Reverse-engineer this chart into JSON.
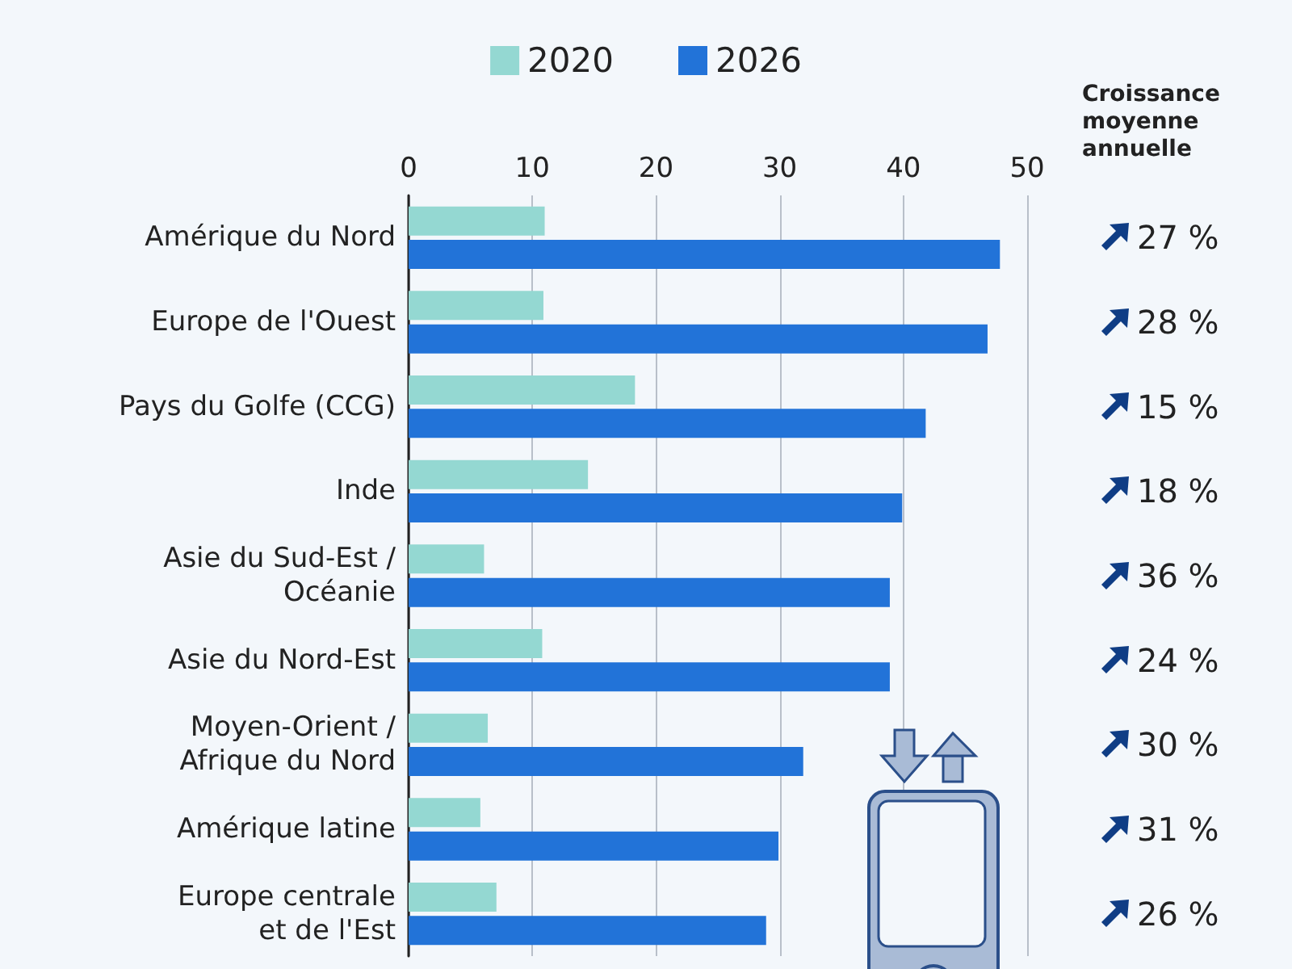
{
  "chart_data": {
    "type": "bar",
    "orientation": "horizontal",
    "categories": [
      "Amérique du Nord",
      "Europe de l'Ouest",
      "Pays du Golfe (CCG)",
      "Inde",
      "Asie du Sud-Est /\nOcéanie",
      "Asie du Nord-Est",
      "Moyen-Orient /\nAfrique du Nord",
      "Amérique latine",
      "Europe centrale\net de l'Est"
    ],
    "series": [
      {
        "name": "2020",
        "color": "#94d8d2",
        "values": [
          11.0,
          10.9,
          18.3,
          14.5,
          6.1,
          10.8,
          6.4,
          5.8,
          7.1
        ]
      },
      {
        "name": "2026",
        "color": "#2273d8",
        "values": [
          47.8,
          46.8,
          41.8,
          39.9,
          38.9,
          38.9,
          31.9,
          29.9,
          28.9
        ]
      }
    ],
    "xlim": [
      0,
      50
    ],
    "xticks": [
      0,
      10,
      20,
      30,
      40,
      50
    ],
    "grid": "x",
    "legend": "top",
    "annotations": [
      "Croissance\nmoyenne\nannuelle",
      "27 %",
      "28 %",
      "15 %",
      "18 %",
      "36 %",
      "24 %",
      "30 %",
      "31 %",
      "26 %"
    ]
  }
}
